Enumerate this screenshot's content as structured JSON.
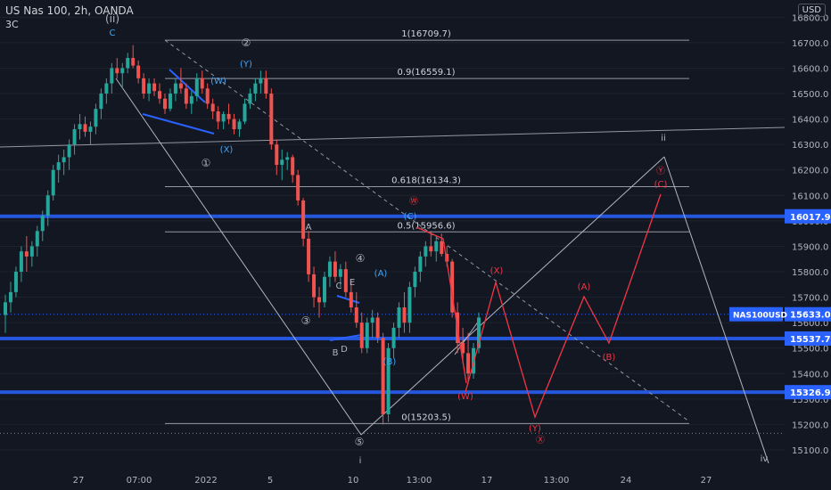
{
  "header": {
    "symbol_line": "US Nas 100, 2h, OANDA",
    "indicator": "3C",
    "currency": "USD"
  },
  "chart_data": {
    "type": "candlestick",
    "ylim": [
      15090,
      16860
    ],
    "y_ticks": [
      15100,
      15200,
      15300,
      15400,
      15500,
      15600,
      15700,
      15800,
      15900,
      16000,
      16100,
      16200,
      16300,
      16400,
      16500,
      16600,
      16700,
      16800
    ],
    "x_tick_labels": [
      "27",
      "07:00",
      "2022",
      "5",
      "10",
      "13:00",
      "17",
      "13:00",
      "24",
      "27"
    ],
    "candles": [
      [
        15630,
        15710,
        15560,
        15680
      ],
      [
        15680,
        15760,
        15640,
        15720
      ],
      [
        15720,
        15820,
        15700,
        15800
      ],
      [
        15800,
        15900,
        15760,
        15880
      ],
      [
        15880,
        15940,
        15800,
        15860
      ],
      [
        15860,
        15920,
        15820,
        15900
      ],
      [
        15900,
        15980,
        15860,
        15960
      ],
      [
        15960,
        16040,
        15920,
        16020
      ],
      [
        16020,
        16120,
        15980,
        16100
      ],
      [
        16100,
        16220,
        16080,
        16200
      ],
      [
        16200,
        16260,
        16150,
        16230
      ],
      [
        16230,
        16280,
        16180,
        16250
      ],
      [
        16250,
        16320,
        16200,
        16300
      ],
      [
        16300,
        16380,
        16260,
        16360
      ],
      [
        16360,
        16420,
        16320,
        16380
      ],
      [
        16380,
        16410,
        16330,
        16350
      ],
      [
        16350,
        16390,
        16300,
        16370
      ],
      [
        16370,
        16460,
        16340,
        16440
      ],
      [
        16440,
        16520,
        16400,
        16500
      ],
      [
        16500,
        16560,
        16460,
        16540
      ],
      [
        16540,
        16620,
        16500,
        16600
      ],
      [
        16600,
        16640,
        16560,
        16580
      ],
      [
        16580,
        16620,
        16520,
        16600
      ],
      [
        16600,
        16660,
        16580,
        16640
      ],
      [
        16640,
        16690,
        16600,
        16610
      ],
      [
        16610,
        16630,
        16540,
        16560
      ],
      [
        16560,
        16580,
        16480,
        16500
      ],
      [
        16500,
        16560,
        16470,
        16540
      ],
      [
        16540,
        16560,
        16490,
        16510
      ],
      [
        16510,
        16540,
        16460,
        16480
      ],
      [
        16480,
        16500,
        16420,
        16440
      ],
      [
        16440,
        16520,
        16430,
        16500
      ],
      [
        16500,
        16560,
        16470,
        16540
      ],
      [
        16540,
        16600,
        16500,
        16520
      ],
      [
        16520,
        16540,
        16440,
        16460
      ],
      [
        16460,
        16510,
        16420,
        16490
      ],
      [
        16490,
        16580,
        16470,
        16560
      ],
      [
        16560,
        16590,
        16500,
        16520
      ],
      [
        16520,
        16540,
        16440,
        16460
      ],
      [
        16460,
        16480,
        16400,
        16430
      ],
      [
        16430,
        16450,
        16360,
        16390
      ],
      [
        16390,
        16430,
        16360,
        16420
      ],
      [
        16420,
        16460,
        16380,
        16400
      ],
      [
        16400,
        16420,
        16340,
        16360
      ],
      [
        16360,
        16400,
        16330,
        16390
      ],
      [
        16390,
        16480,
        16380,
        16460
      ],
      [
        16460,
        16520,
        16440,
        16500
      ],
      [
        16500,
        16560,
        16470,
        16540
      ],
      [
        16540,
        16590,
        16500,
        16560
      ],
      [
        16560,
        16590,
        16480,
        16500
      ],
      [
        16500,
        16520,
        16280,
        16300
      ],
      [
        16300,
        16320,
        16180,
        16220
      ],
      [
        16220,
        16280,
        16160,
        16240
      ],
      [
        16240,
        16270,
        16200,
        16250
      ],
      [
        16250,
        16260,
        16150,
        16180
      ],
      [
        16180,
        16200,
        16060,
        16080
      ],
      [
        16080,
        16090,
        15900,
        15930
      ],
      [
        15930,
        15960,
        15760,
        15790
      ],
      [
        15790,
        15820,
        15660,
        15700
      ],
      [
        15700,
        15740,
        15620,
        15680
      ],
      [
        15680,
        15800,
        15660,
        15780
      ],
      [
        15780,
        15860,
        15740,
        15840
      ],
      [
        15840,
        15880,
        15760,
        15780
      ],
      [
        15780,
        15830,
        15740,
        15810
      ],
      [
        15810,
        15840,
        15700,
        15720
      ],
      [
        15720,
        15760,
        15640,
        15660
      ],
      [
        15660,
        15720,
        15580,
        15600
      ],
      [
        15600,
        15640,
        15480,
        15500
      ],
      [
        15500,
        15620,
        15480,
        15600
      ],
      [
        15600,
        15650,
        15540,
        15620
      ],
      [
        15620,
        15640,
        15520,
        15540
      ],
      [
        15540,
        15560,
        15200,
        15240
      ],
      [
        15240,
        15520,
        15210,
        15500
      ],
      [
        15500,
        15600,
        15460,
        15580
      ],
      [
        15580,
        15680,
        15540,
        15660
      ],
      [
        15660,
        15720,
        15560,
        15600
      ],
      [
        15600,
        15760,
        15560,
        15740
      ],
      [
        15740,
        15820,
        15700,
        15800
      ],
      [
        15800,
        15880,
        15760,
        15860
      ],
      [
        15860,
        15920,
        15820,
        15900
      ],
      [
        15900,
        15960,
        15860,
        15880
      ],
      [
        15880,
        15940,
        15840,
        15920
      ],
      [
        15920,
        15950,
        15860,
        15870
      ],
      [
        15870,
        15900,
        15820,
        15840
      ],
      [
        15840,
        15850,
        15620,
        15640
      ],
      [
        15640,
        15680,
        15480,
        15520
      ],
      [
        15520,
        15580,
        15440,
        15480
      ],
      [
        15480,
        15560,
        15360,
        15400
      ],
      [
        15400,
        15520,
        15380,
        15500
      ],
      [
        15500,
        15640,
        15480,
        15620
      ]
    ],
    "price_lines": [
      {
        "name": "NAS100USD",
        "value": 15633.0,
        "label": "15633.0",
        "color": "#2962ff"
      },
      {
        "value": 16017.9,
        "label": "16017.9",
        "color": "#2962ff"
      },
      {
        "value": 15537.7,
        "label": "15537.7",
        "color": "#2962ff"
      },
      {
        "value": 15326.9,
        "label": "15326.9",
        "color": "#2962ff"
      }
    ],
    "fib_levels": [
      {
        "ratio": "1",
        "value": 16709.7,
        "label": "1(16709.7)"
      },
      {
        "ratio": "0.9",
        "value": 16559.1,
        "label": "0.9(16559.1)"
      },
      {
        "ratio": "0.618",
        "value": 16134.3,
        "label": "0.618(16134.3)"
      },
      {
        "ratio": "0.5",
        "value": 15956.6,
        "label": "0.5(15956.6)"
      },
      {
        "ratio": "0",
        "value": 15203.5,
        "label": "0(15203.5)"
      }
    ],
    "wave_labels": {
      "white": [
        "(ii)",
        "②",
        "①",
        "③",
        "④",
        "⑤",
        "i",
        "ii",
        "iv",
        "A",
        "B",
        "C",
        "D",
        "E"
      ],
      "blue": [
        "C",
        "(Y)",
        "(W)",
        "(X)",
        "(C)",
        "(A)",
        "(B)"
      ],
      "red": [
        "Ⓦ",
        "(X)",
        "(A)",
        "(B)",
        "Ⓨ",
        "(C)",
        "(W)",
        "(Y)",
        "Ⓧ"
      ]
    },
    "colors": {
      "background": "#131722",
      "up": "#26a69a",
      "down": "#ef5350",
      "blue_line": "#2962ff",
      "projection": "#f23645"
    }
  }
}
